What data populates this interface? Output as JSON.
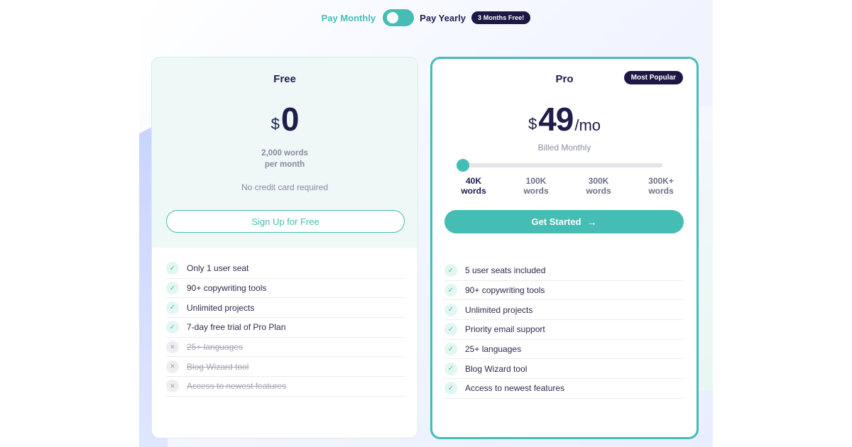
{
  "billing_toggle": {
    "monthly_label": "Pay Monthly",
    "yearly_label": "Pay Yearly",
    "promo_badge": "3 Months Free!"
  },
  "plans": {
    "free": {
      "name": "Free",
      "currency": "$",
      "price": "0",
      "words_line1": "2,000 words",
      "words_line2": "per month",
      "note": "No credit card required",
      "button_label": "Sign Up for Free",
      "features": [
        {
          "text": "Only 1 user seat",
          "included": true
        },
        {
          "text": "90+ copywriting tools",
          "included": true
        },
        {
          "text": "Unlimited projects",
          "included": true
        },
        {
          "text": "7-day free trial of Pro Plan",
          "included": true
        },
        {
          "text": "25+ languages",
          "included": false
        },
        {
          "text": "Blog Wizard tool",
          "included": false
        },
        {
          "text": "Access to newest features",
          "included": false
        }
      ]
    },
    "pro": {
      "name": "Pro",
      "badge": "Most Popular",
      "currency": "$",
      "price": "49",
      "period": "/mo",
      "billing_note": "Billed Monthly",
      "slider_value_fraction": 0,
      "tiers": [
        {
          "top": "40K",
          "bottom": "words"
        },
        {
          "top": "100K",
          "bottom": "words"
        },
        {
          "top": "300K",
          "bottom": "words"
        },
        {
          "top": "300K+",
          "bottom": "words"
        }
      ],
      "selected_tier": 0,
      "button_label": "Get Started",
      "button_icon": "arrow-right-icon",
      "features": [
        {
          "text": "5 user seats included",
          "included": true
        },
        {
          "text": "90+ copywriting tools",
          "included": true
        },
        {
          "text": "Unlimited projects",
          "included": true
        },
        {
          "text": "Priority email support",
          "included": true
        },
        {
          "text": "25+ languages",
          "included": true
        },
        {
          "text": "Blog Wizard tool",
          "included": true
        },
        {
          "text": "Access to newest features",
          "included": true
        }
      ]
    }
  },
  "colors": {
    "accent": "#45bdb4",
    "navy": "#1d1746",
    "muted": "#868ca0"
  }
}
